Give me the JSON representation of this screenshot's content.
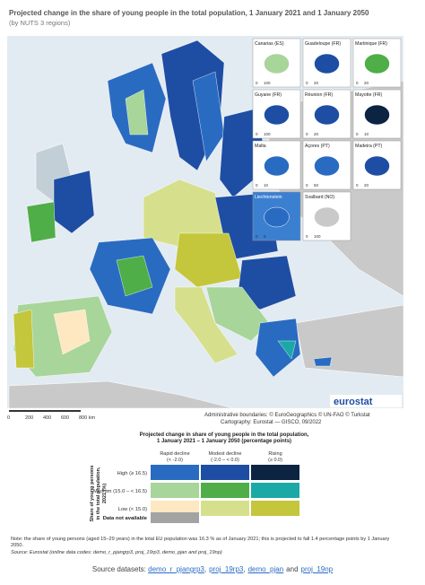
{
  "title": "Projected change in the share of young people in the total population, 1 January 2021 and 1 January 2050",
  "subtitle": "(by NUTS 3 regions)",
  "insets": [
    {
      "name": "Canarias (ES)",
      "scale": [
        "0",
        "100"
      ]
    },
    {
      "name": "Guadeloupe (FR)",
      "scale": [
        "0",
        "20"
      ]
    },
    {
      "name": "Martinique (FR)",
      "scale": [
        "0",
        "20"
      ]
    },
    {
      "name": "Guyane (FR)",
      "scale": [
        "0",
        "100"
      ]
    },
    {
      "name": "Réunion (FR)",
      "scale": [
        "0",
        "20"
      ]
    },
    {
      "name": "Mayotte (FR)",
      "scale": [
        "0",
        "10"
      ]
    },
    {
      "name": "Malta",
      "scale": [
        "0",
        "10"
      ]
    },
    {
      "name": "Açores (PT)",
      "scale": [
        "0",
        "50"
      ]
    },
    {
      "name": "Madeira (PT)",
      "scale": [
        "0",
        "20"
      ]
    },
    {
      "name": "Liechtenstein",
      "scale": [
        "0",
        "5"
      ]
    },
    {
      "name": "Svalbard (NO)",
      "scale": [
        "0",
        "100"
      ]
    }
  ],
  "scale_bar": [
    "0",
    "200",
    "400",
    "600",
    "800 km"
  ],
  "credits": [
    "Administrative boundaries: © EuroGeographics © UN-FAO © Turkstat",
    "Cartography: Eurostat — GISCO, 09/2022"
  ],
  "logo": "eurostat",
  "legend": {
    "title": [
      "Projected change in share of young people in the total population,",
      "1 January 2021 – 1 January 2050 (percentage points)"
    ],
    "columns": [
      {
        "label": "Rapid decline",
        "range": "(< -2.0)"
      },
      {
        "label": "Modest decline",
        "range": "(-2.0 – < 0.0)"
      },
      {
        "label": "Rising",
        "range": "(≥ 0.0)"
      }
    ],
    "row_axis_title": [
      "Share of young persons",
      "in the total population,",
      "2021 (%)"
    ],
    "rows": [
      {
        "label": "High (≥ 16.5)",
        "colors": [
          "#2a6bc2",
          "#1e4ea3",
          "#0c2341"
        ]
      },
      {
        "label": "Medium (15.0 – < 16.5)",
        "colors": [
          "#a8d59a",
          "#4fae48",
          "#1ba9a6"
        ]
      },
      {
        "label": "Low (< 15.0)",
        "colors": [
          "#fde8c2",
          "#d6e08c",
          "#c4c63c"
        ]
      }
    ],
    "na_label": "Data not available",
    "na_color": "#a3a3a3"
  },
  "note": "Note: the share of young persons (aged 15–29 years) in the total EU population was 16.3 % as of January 2021; this is projected to fall 1.4 percentage points by 1 January 2050.",
  "source": "Source: Eurostat (online data codes: demo_r_pjangrp3, proj_19rp3, demo_pjan and proj_19np)",
  "footer": {
    "prefix": "Source datasets:",
    "links": [
      "demo_r_pjangrp3",
      "proj_19rp3",
      "demo_pjan",
      "proj_19np"
    ],
    "separators": [
      ",",
      ",",
      "and"
    ]
  }
}
